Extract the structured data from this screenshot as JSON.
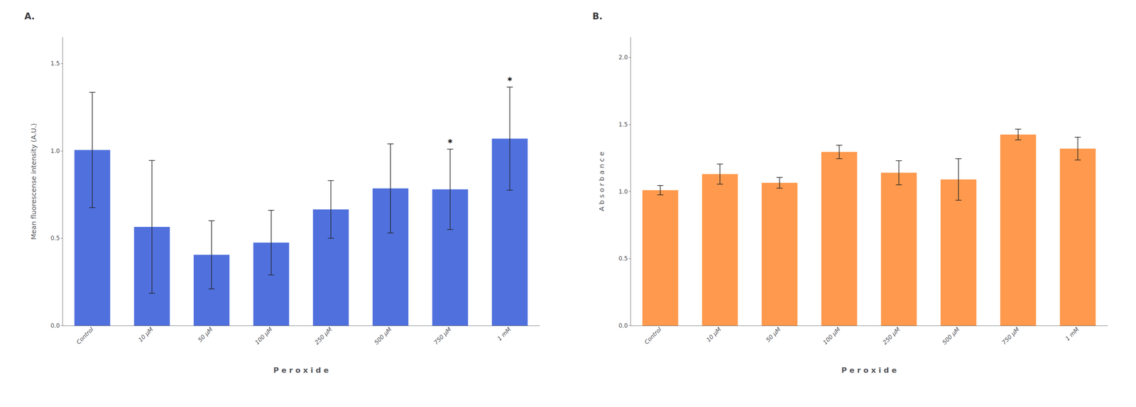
{
  "chart_data": [
    {
      "type": "bar",
      "title": "A.",
      "categories": [
        "Control",
        "10 μM",
        "50 μM",
        "100 μM",
        "250 μM",
        "500 μM",
        "750 μM",
        "1 mM"
      ],
      "values": [
        1.005,
        0.565,
        0.405,
        0.475,
        0.665,
        0.785,
        0.78,
        1.07
      ],
      "errors": [
        0.33,
        0.38,
        0.195,
        0.185,
        0.165,
        0.255,
        0.23,
        0.295
      ],
      "xlabel": "P e r o x i d e",
      "ylabel": "Mean fluorescense intensity (A.U.)",
      "ylim": [
        0,
        1.65
      ],
      "yticks": [
        {
          "value": 0,
          "label": "0.0"
        },
        0.5,
        {
          "value": 1,
          "label": "1.0"
        },
        1.5
      ],
      "grid": false,
      "annotations": [
        {
          "category": "750 μM",
          "text": "*"
        },
        {
          "category": "1 mM",
          "text": "*"
        }
      ]
    },
    {
      "type": "bar",
      "title": "B.",
      "categories": [
        "Control",
        "10 μM",
        "50 μM",
        "100 μM",
        "250 μM",
        "500 μM",
        "750 μM",
        "1 mM"
      ],
      "values": [
        1.01,
        1.13,
        1.065,
        1.295,
        1.14,
        1.09,
        1.425,
        1.32
      ],
      "errors": [
        0.035,
        0.075,
        0.04,
        0.05,
        0.09,
        0.155,
        0.04,
        0.085
      ],
      "xlabel": "P e r o x i d e",
      "ylabel": "A b s o r b a n c e",
      "ylim": [
        0,
        2.15
      ],
      "yticks": [
        {
          "value": 0,
          "label": "0.0"
        },
        0.5,
        {
          "value": 1,
          "label": "1.0"
        },
        1.5,
        {
          "value": 2,
          "label": "2.0"
        }
      ],
      "grid": false
    }
  ]
}
